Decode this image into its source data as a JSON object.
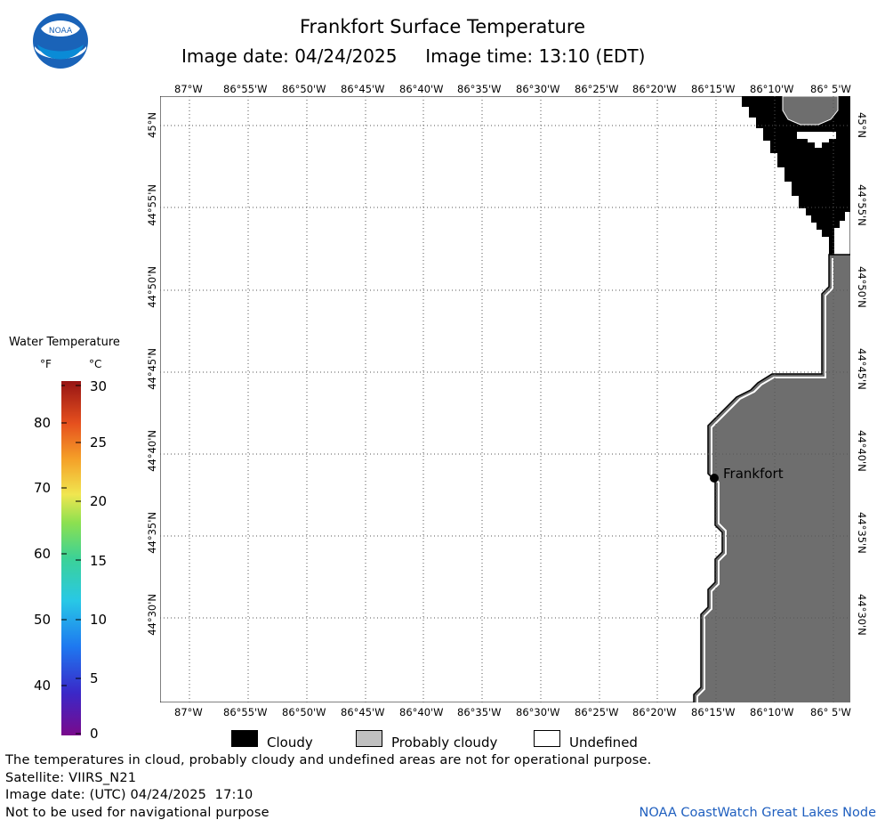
{
  "header": {
    "title": "Frankfort Surface Temperature",
    "subtitle": "Image date: 04/24/2025     Image time: 13:10 (EDT)",
    "logo_text": "NOAA"
  },
  "map": {
    "lon_ticks": [
      "87°W",
      "86°55'W",
      "86°50'W",
      "86°45'W",
      "86°40'W",
      "86°35'W",
      "86°30'W",
      "86°25'W",
      "86°20'W",
      "86°15'W",
      "86°10'W",
      "86° 5'W"
    ],
    "lat_ticks": [
      "45°N",
      "44°55'N",
      "44°50'N",
      "44°45'N",
      "44°40'N",
      "44°35'N",
      "44°30'N"
    ],
    "city_label": "Frankfort",
    "colors": {
      "land": "#6e6e6e",
      "cloud": "#000000",
      "water": "#ffffff",
      "grid": "#555555"
    }
  },
  "legend": {
    "title": "Water Temperature",
    "unit_f": "°F",
    "unit_c": "°C",
    "f_labels": [
      "80",
      "70",
      "60",
      "50",
      "40"
    ],
    "c_labels": [
      "30",
      "25",
      "20",
      "15",
      "10",
      "5",
      "0"
    ],
    "categories": [
      {
        "label": "Cloudy",
        "color": "#000000"
      },
      {
        "label": "Probably cloudy",
        "color": "#c0c0c0"
      },
      {
        "label": "Undefined",
        "color": "#ffffff"
      }
    ]
  },
  "footer": {
    "note": "The temperatures in cloud, probably cloudy and undefined areas are not for operational purpose.",
    "satellite": "Satellite: VIIRS_N21",
    "utc_date": "Image date: (UTC) 04/24/2025  17:10",
    "nav_warning": "Not to be used for navigational purpose",
    "credit": "NOAA CoastWatch Great Lakes Node"
  }
}
